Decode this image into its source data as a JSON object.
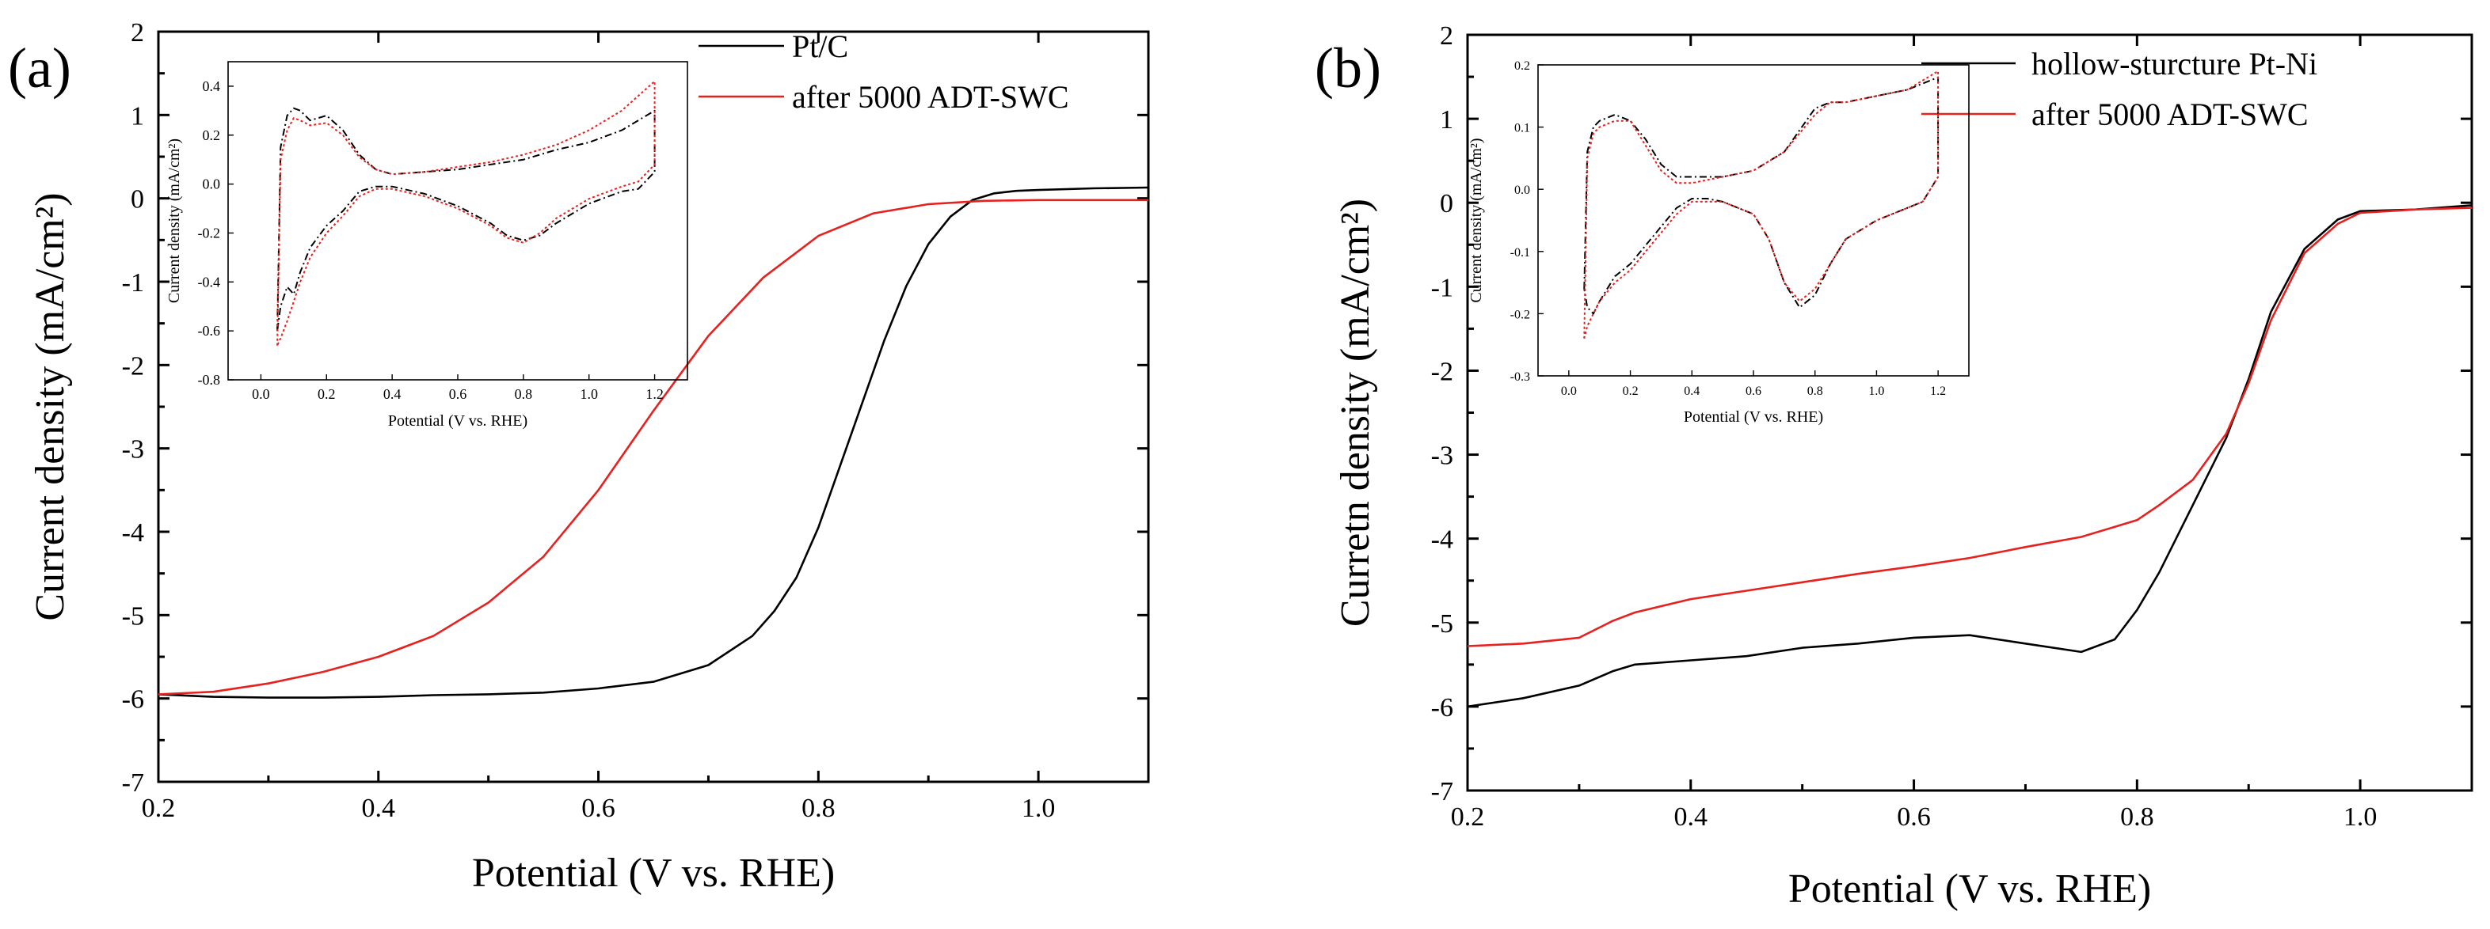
{
  "colors": {
    "black_series": "#000000",
    "red_series": "#e8211f",
    "axis": "#000000"
  },
  "chart_data": [
    {
      "type": "line",
      "panel_label": "(a)",
      "xlabel": "Potential (V vs. RHE)",
      "ylabel": "Current density (mA/cm²)",
      "xlim": [
        0.2,
        1.1
      ],
      "ylim": [
        -7,
        2
      ],
      "xticks": [
        0.2,
        0.4,
        0.6,
        0.8,
        1.0
      ],
      "xtick_labels": [
        "0.2",
        "0.4",
        "0.6",
        "0.8",
        "1.0"
      ],
      "yticks": [
        -7,
        -6,
        -5,
        -4,
        -3,
        -2,
        -1,
        0,
        1,
        2
      ],
      "ytick_labels": [
        "-7",
        "-6",
        "-5",
        "-4",
        "-3",
        "-2",
        "-1",
        "0",
        "1",
        "2"
      ],
      "legend": [
        "Pt/C",
        "after 5000 ADT-SWC"
      ],
      "series": [
        {
          "name": "Pt/C",
          "color": "#000000",
          "x": [
            0.2,
            0.25,
            0.3,
            0.35,
            0.4,
            0.45,
            0.5,
            0.55,
            0.6,
            0.65,
            0.7,
            0.74,
            0.76,
            0.78,
            0.8,
            0.82,
            0.84,
            0.86,
            0.88,
            0.9,
            0.92,
            0.94,
            0.96,
            0.98,
            1.0,
            1.05,
            1.1
          ],
          "y": [
            -5.95,
            -5.98,
            -5.99,
            -5.99,
            -5.98,
            -5.96,
            -5.95,
            -5.93,
            -5.88,
            -5.8,
            -5.6,
            -5.25,
            -4.95,
            -4.55,
            -3.95,
            -3.2,
            -2.45,
            -1.7,
            -1.05,
            -0.55,
            -0.22,
            -0.02,
            0.06,
            0.09,
            0.1,
            0.12,
            0.13
          ]
        },
        {
          "name": "after 5000 ADT-SWC",
          "color": "#e8211f",
          "x": [
            0.2,
            0.25,
            0.3,
            0.35,
            0.4,
            0.45,
            0.5,
            0.55,
            0.6,
            0.65,
            0.7,
            0.75,
            0.8,
            0.85,
            0.9,
            0.95,
            1.0,
            1.05,
            1.1
          ],
          "y": [
            -5.95,
            -5.92,
            -5.82,
            -5.68,
            -5.5,
            -5.25,
            -4.85,
            -4.3,
            -3.5,
            -2.55,
            -1.65,
            -0.95,
            -0.45,
            -0.18,
            -0.07,
            -0.03,
            -0.02,
            -0.02,
            -0.02
          ]
        }
      ],
      "inset": {
        "type": "line",
        "xlabel": "Potential (V vs. RHE)",
        "ylabel": "Current density (mA/cm²)",
        "xlim": [
          -0.1,
          1.3
        ],
        "ylim": [
          -0.8,
          0.5
        ],
        "xticks": [
          0.0,
          0.2,
          0.4,
          0.6,
          0.8,
          1.0,
          1.2
        ],
        "xtick_labels": [
          "0.0",
          "0.2",
          "0.4",
          "0.6",
          "0.8",
          "1.0",
          "1.2"
        ],
        "yticks": [
          -0.8,
          -0.6,
          -0.4,
          -0.2,
          0.0,
          0.2,
          0.4
        ],
        "ytick_labels": [
          "-0.8",
          "-0.6",
          "-0.4",
          "-0.2",
          "0.0",
          "0.2",
          "0.4"
        ],
        "series": [
          {
            "name": "Pt/C",
            "color": "#000000",
            "x": [
              0.05,
              0.06,
              0.08,
              0.1,
              0.12,
              0.15,
              0.2,
              0.25,
              0.3,
              0.35,
              0.4,
              0.5,
              0.6,
              0.7,
              0.8,
              0.9,
              1.0,
              1.1,
              1.2,
              1.2,
              1.15,
              1.1,
              1.0,
              0.9,
              0.85,
              0.8,
              0.75,
              0.7,
              0.6,
              0.5,
              0.4,
              0.35,
              0.3,
              0.25,
              0.2,
              0.15,
              0.12,
              0.1,
              0.08,
              0.06,
              0.05
            ],
            "y": [
              -0.6,
              0.15,
              0.28,
              0.31,
              0.3,
              0.26,
              0.28,
              0.22,
              0.12,
              0.06,
              0.04,
              0.05,
              0.06,
              0.08,
              0.1,
              0.14,
              0.17,
              0.22,
              0.3,
              0.05,
              -0.02,
              -0.03,
              -0.08,
              -0.16,
              -0.21,
              -0.23,
              -0.21,
              -0.16,
              -0.09,
              -0.04,
              -0.01,
              -0.01,
              -0.03,
              -0.11,
              -0.17,
              -0.26,
              -0.36,
              -0.45,
              -0.42,
              -0.5,
              -0.6
            ]
          },
          {
            "name": "after 5000 ADT-SWC",
            "color": "#e8211f",
            "x": [
              0.05,
              0.06,
              0.08,
              0.1,
              0.12,
              0.15,
              0.2,
              0.25,
              0.3,
              0.35,
              0.4,
              0.5,
              0.6,
              0.7,
              0.8,
              0.9,
              1.0,
              1.1,
              1.2,
              1.2,
              1.15,
              1.1,
              1.0,
              0.9,
              0.85,
              0.8,
              0.75,
              0.7,
              0.6,
              0.5,
              0.4,
              0.35,
              0.3,
              0.25,
              0.2,
              0.15,
              0.12,
              0.1,
              0.08,
              0.06,
              0.05
            ],
            "y": [
              -0.66,
              0.1,
              0.22,
              0.27,
              0.26,
              0.24,
              0.25,
              0.2,
              0.11,
              0.06,
              0.04,
              0.05,
              0.07,
              0.09,
              0.12,
              0.16,
              0.22,
              0.3,
              0.42,
              0.08,
              0.01,
              -0.01,
              -0.06,
              -0.14,
              -0.2,
              -0.24,
              -0.22,
              -0.17,
              -0.1,
              -0.05,
              -0.02,
              -0.02,
              -0.05,
              -0.13,
              -0.2,
              -0.3,
              -0.4,
              -0.48,
              -0.56,
              -0.63,
              -0.66
            ]
          }
        ]
      }
    },
    {
      "type": "line",
      "panel_label": "(b)",
      "xlabel": "Potential (V vs. RHE)",
      "ylabel": "Curretn density (mA/cm²)",
      "xlim": [
        0.2,
        1.1
      ],
      "ylim": [
        -7,
        2
      ],
      "xticks": [
        0.2,
        0.4,
        0.6,
        0.8,
        1.0
      ],
      "xtick_labels": [
        "0.2",
        "0.4",
        "0.6",
        "0.8",
        "1.0"
      ],
      "yticks": [
        -7,
        -6,
        -5,
        -4,
        -3,
        -2,
        -1,
        0,
        1,
        2
      ],
      "ytick_labels": [
        "-7",
        "-6",
        "-5",
        "-4",
        "-3",
        "-2",
        "-1",
        "0",
        "1",
        "2"
      ],
      "legend": [
        "hollow-sturcture Pt-Ni",
        "after 5000 ADT-SWC"
      ],
      "series": [
        {
          "name": "hollow-sturcture Pt-Ni",
          "color": "#000000",
          "x": [
            0.2,
            0.25,
            0.3,
            0.33,
            0.35,
            0.4,
            0.45,
            0.5,
            0.55,
            0.6,
            0.65,
            0.7,
            0.75,
            0.78,
            0.8,
            0.82,
            0.85,
            0.88,
            0.9,
            0.92,
            0.95,
            0.98,
            1.0,
            1.05,
            1.1
          ],
          "y": [
            -6.0,
            -5.9,
            -5.75,
            -5.58,
            -5.5,
            -5.45,
            -5.4,
            -5.3,
            -5.25,
            -5.18,
            -5.15,
            -5.25,
            -5.35,
            -5.2,
            -4.85,
            -4.4,
            -3.6,
            -2.8,
            -2.1,
            -1.3,
            -0.55,
            -0.2,
            -0.1,
            -0.08,
            -0.03
          ]
        },
        {
          "name": "after 5000 ADT-SWC",
          "color": "#e8211f",
          "x": [
            0.2,
            0.25,
            0.3,
            0.33,
            0.35,
            0.4,
            0.45,
            0.5,
            0.55,
            0.6,
            0.65,
            0.7,
            0.75,
            0.8,
            0.82,
            0.85,
            0.88,
            0.9,
            0.92,
            0.95,
            0.98,
            1.0,
            1.05,
            1.1
          ],
          "y": [
            -5.28,
            -5.25,
            -5.18,
            -4.98,
            -4.88,
            -4.72,
            -4.62,
            -4.52,
            -4.42,
            -4.33,
            -4.23,
            -4.1,
            -3.98,
            -3.78,
            -3.6,
            -3.3,
            -2.75,
            -2.15,
            -1.4,
            -0.6,
            -0.25,
            -0.12,
            -0.08,
            -0.06
          ]
        }
      ],
      "inset": {
        "type": "line",
        "xlabel": "Potential (V vs. RHE)",
        "ylabel": "Current density (mA/cm²)",
        "xlim": [
          -0.1,
          1.3
        ],
        "ylim": [
          -0.3,
          0.2
        ],
        "xticks": [
          0.0,
          0.2,
          0.4,
          0.6,
          0.8,
          1.0,
          1.2
        ],
        "xtick_labels": [
          "0.0",
          "0.2",
          "0.4",
          "0.6",
          "0.8",
          "1.0",
          "1.2"
        ],
        "yticks": [
          -0.3,
          -0.2,
          -0.1,
          0.0,
          0.1,
          0.2
        ],
        "ytick_labels": [
          "-0.3",
          "-0.2",
          "-0.1",
          "0.0",
          "0.1",
          "0.2"
        ],
        "series": [
          {
            "name": "hollow-sturcture Pt-Ni",
            "color": "#000000",
            "x": [
              0.05,
              0.06,
              0.08,
              0.1,
              0.15,
              0.2,
              0.25,
              0.3,
              0.35,
              0.4,
              0.5,
              0.6,
              0.7,
              0.8,
              0.85,
              0.9,
              1.0,
              1.1,
              1.2,
              1.2,
              1.15,
              1.1,
              1.0,
              0.9,
              0.85,
              0.8,
              0.75,
              0.7,
              0.65,
              0.6,
              0.5,
              0.45,
              0.4,
              0.35,
              0.3,
              0.25,
              0.2,
              0.15,
              0.1,
              0.08,
              0.06,
              0.05
            ],
            "y": [
              -0.16,
              0.06,
              0.1,
              0.11,
              0.12,
              0.11,
              0.08,
              0.04,
              0.02,
              0.02,
              0.02,
              0.03,
              0.06,
              0.13,
              0.14,
              0.14,
              0.15,
              0.16,
              0.18,
              0.02,
              -0.02,
              -0.03,
              -0.05,
              -0.08,
              -0.12,
              -0.17,
              -0.19,
              -0.15,
              -0.08,
              -0.04,
              -0.02,
              -0.015,
              -0.015,
              -0.03,
              -0.06,
              -0.09,
              -0.12,
              -0.14,
              -0.18,
              -0.2,
              -0.19,
              -0.16
            ]
          },
          {
            "name": "after 5000 ADT-SWC",
            "color": "#e8211f",
            "x": [
              0.05,
              0.06,
              0.08,
              0.1,
              0.15,
              0.2,
              0.25,
              0.3,
              0.35,
              0.4,
              0.5,
              0.6,
              0.7,
              0.8,
              0.85,
              0.9,
              1.0,
              1.1,
              1.2,
              1.2,
              1.15,
              1.1,
              1.0,
              0.9,
              0.85,
              0.8,
              0.75,
              0.7,
              0.65,
              0.6,
              0.5,
              0.45,
              0.4,
              0.35,
              0.3,
              0.25,
              0.2,
              0.15,
              0.1,
              0.08,
              0.06,
              0.05
            ],
            "y": [
              -0.24,
              0.05,
              0.09,
              0.1,
              0.11,
              0.11,
              0.07,
              0.03,
              0.01,
              0.01,
              0.02,
              0.03,
              0.06,
              0.12,
              0.14,
              0.14,
              0.15,
              0.16,
              0.19,
              0.02,
              -0.02,
              -0.03,
              -0.05,
              -0.08,
              -0.12,
              -0.16,
              -0.18,
              -0.15,
              -0.08,
              -0.04,
              -0.02,
              -0.02,
              -0.02,
              -0.04,
              -0.07,
              -0.1,
              -0.13,
              -0.15,
              -0.18,
              -0.2,
              -0.22,
              -0.24
            ]
          }
        ]
      }
    }
  ]
}
